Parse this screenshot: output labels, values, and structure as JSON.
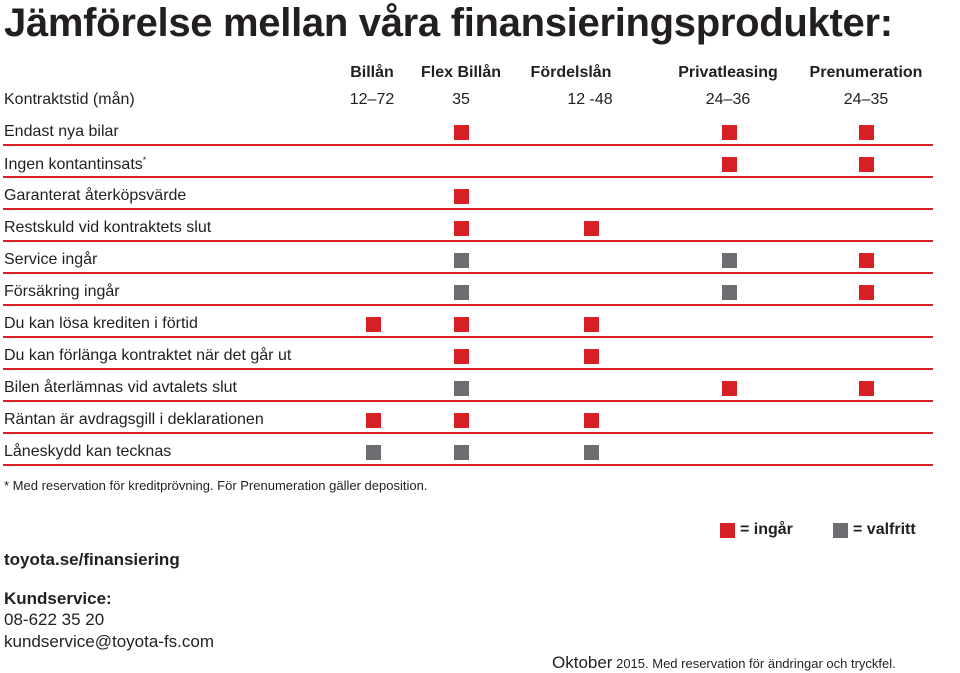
{
  "title": "Jämförelse mellan våra finansieringsprodukter:",
  "products": [
    "Billån",
    "Flex Billån",
    "Fördelslån",
    "Privatleasing",
    "Prenumeration"
  ],
  "term": {
    "label": "Kontraktstid (mån)",
    "values": [
      "12–72",
      "35",
      "12 -48",
      "24–36",
      "24–35"
    ]
  },
  "rows": [
    {
      "label": "Endast nya bilar",
      "sup": "",
      "marks": [
        "",
        "ingar",
        "",
        "ingar",
        "ingar"
      ]
    },
    {
      "label": "Ingen kontantinsats",
      "sup": "*",
      "marks": [
        "",
        "",
        "",
        "ingar",
        "ingar"
      ]
    },
    {
      "label": "Garanterat återköpsvärde",
      "sup": "",
      "marks": [
        "",
        "ingar",
        "",
        "",
        ""
      ]
    },
    {
      "label": "Restskuld vid kontraktets slut",
      "sup": "",
      "marks": [
        "",
        "ingar",
        "ingar",
        "",
        ""
      ]
    },
    {
      "label": "Service ingår",
      "sup": "",
      "marks": [
        "",
        "valfritt",
        "",
        "valfritt",
        "ingar"
      ]
    },
    {
      "label": "Försäkring ingår",
      "sup": "",
      "marks": [
        "",
        "valfritt",
        "",
        "valfritt",
        "ingar"
      ]
    },
    {
      "label": "Du kan lösa krediten i förtid",
      "sup": "",
      "marks": [
        "ingar",
        "ingar",
        "ingar",
        "",
        ""
      ]
    },
    {
      "label": "Du kan förlänga kontraktet när det går ut",
      "sup": "",
      "marks": [
        "",
        "ingar",
        "ingar",
        "",
        ""
      ]
    },
    {
      "label": "Bilen återlämnas vid avtalets slut",
      "sup": "",
      "marks": [
        "",
        "valfritt",
        "",
        "ingar",
        "ingar"
      ]
    },
    {
      "label": "Räntan är avdragsgill i deklarationen",
      "sup": "",
      "marks": [
        "ingar",
        "ingar",
        "ingar",
        "",
        ""
      ]
    },
    {
      "label": "Låneskydd kan tecknas",
      "sup": "",
      "marks": [
        "valfritt",
        "valfritt",
        "valfritt",
        "",
        ""
      ]
    }
  ],
  "colors": {
    "ingar": "#d71f26",
    "valfritt": "#6d6e71"
  },
  "footnote": "* Med reservation för kreditprövning. För Prenumeration gäller deposition.",
  "legend": {
    "ingar": "= ingår",
    "valfritt": "= valfritt"
  },
  "url": "toyota.se/finansiering",
  "kundservice": {
    "title": "Kundservice:",
    "phone": "08-622 35 20",
    "email": "kundservice@toyota-fs.com"
  },
  "date_note": {
    "month": "Oktober",
    "rest": " 2015. Med reservation för ändringar och tryckfel."
  }
}
